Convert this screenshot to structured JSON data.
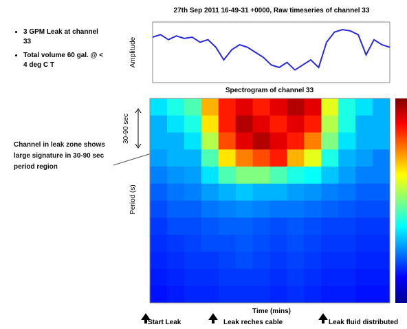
{
  "slide": {
    "bullets": [
      "3 GPM Leak at channel 33",
      "Total volume 60 gal. @ < 4 deg C T"
    ],
    "annotation": "Channel in leak zone shows large signature in 30-90 sec period region",
    "band_label": "30-90 sec",
    "events": [
      "Start Leak",
      "Leak reches cable",
      "Leak fluid distributed"
    ]
  },
  "chart_data": [
    {
      "type": "line",
      "title": "27th Sep 2011 16-49-31 +0000, Raw timeseries of channel 33",
      "y_label": "Amplitude",
      "color": "#2a2ad8",
      "x": [
        0,
        2,
        4,
        6,
        8,
        10,
        12,
        14,
        16,
        18,
        20,
        22,
        24,
        26,
        28,
        30,
        32,
        34,
        36,
        38,
        40,
        42,
        44,
        46,
        48,
        50,
        52,
        54,
        56,
        58,
        60
      ],
      "values": [
        0.6,
        0.7,
        0.5,
        0.65,
        0.55,
        0.6,
        0.4,
        0.5,
        0.2,
        -0.3,
        0.1,
        0.3,
        0.2,
        0.0,
        -0.2,
        -0.5,
        -0.6,
        -0.4,
        -0.7,
        -0.5,
        -0.3,
        -0.6,
        0.4,
        0.8,
        0.9,
        0.85,
        0.7,
        -0.1,
        0.5,
        0.3,
        0.2
      ],
      "xlim": [
        0,
        60
      ],
      "ylim": [
        -1.2,
        1.2
      ]
    },
    {
      "type": "heatmap",
      "title": "Spectrogram of channel 33",
      "x_label": "Time (mins)",
      "y_label": "Period (s)",
      "colormap": "jet",
      "values": [
        [
          0.35,
          0.4,
          0.45,
          0.7,
          0.85,
          0.9,
          0.85,
          0.9,
          0.95,
          0.9,
          0.6,
          0.4,
          0.35,
          0.3
        ],
        [
          0.3,
          0.35,
          0.4,
          0.65,
          0.85,
          0.95,
          0.9,
          0.85,
          0.9,
          0.85,
          0.55,
          0.4,
          0.3,
          0.3
        ],
        [
          0.3,
          0.3,
          0.35,
          0.55,
          0.8,
          0.9,
          0.95,
          0.9,
          0.85,
          0.75,
          0.5,
          0.35,
          0.3,
          0.3
        ],
        [
          0.28,
          0.3,
          0.3,
          0.45,
          0.65,
          0.75,
          0.8,
          0.85,
          0.7,
          0.6,
          0.4,
          0.3,
          0.28,
          0.25
        ],
        [
          0.25,
          0.27,
          0.28,
          0.35,
          0.45,
          0.5,
          0.5,
          0.45,
          0.4,
          0.38,
          0.32,
          0.28,
          0.25,
          0.25
        ],
        [
          0.22,
          0.24,
          0.25,
          0.28,
          0.3,
          0.32,
          0.3,
          0.3,
          0.28,
          0.27,
          0.25,
          0.24,
          0.22,
          0.22
        ],
        [
          0.2,
          0.22,
          0.22,
          0.24,
          0.25,
          0.26,
          0.25,
          0.24,
          0.24,
          0.23,
          0.22,
          0.21,
          0.2,
          0.2
        ],
        [
          0.18,
          0.2,
          0.2,
          0.21,
          0.22,
          0.22,
          0.21,
          0.2,
          0.21,
          0.2,
          0.19,
          0.19,
          0.18,
          0.18
        ],
        [
          0.17,
          0.18,
          0.19,
          0.2,
          0.2,
          0.21,
          0.2,
          0.19,
          0.2,
          0.19,
          0.18,
          0.18,
          0.17,
          0.17
        ],
        [
          0.16,
          0.17,
          0.18,
          0.18,
          0.19,
          0.2,
          0.19,
          0.18,
          0.19,
          0.18,
          0.17,
          0.17,
          0.16,
          0.16
        ],
        [
          0.15,
          0.16,
          0.17,
          0.17,
          0.18,
          0.18,
          0.18,
          0.17,
          0.18,
          0.17,
          0.16,
          0.16,
          0.15,
          0.15
        ],
        [
          0.14,
          0.15,
          0.16,
          0.16,
          0.17,
          0.17,
          0.17,
          0.16,
          0.17,
          0.16,
          0.15,
          0.15,
          0.14,
          0.14
        ]
      ]
    }
  ]
}
